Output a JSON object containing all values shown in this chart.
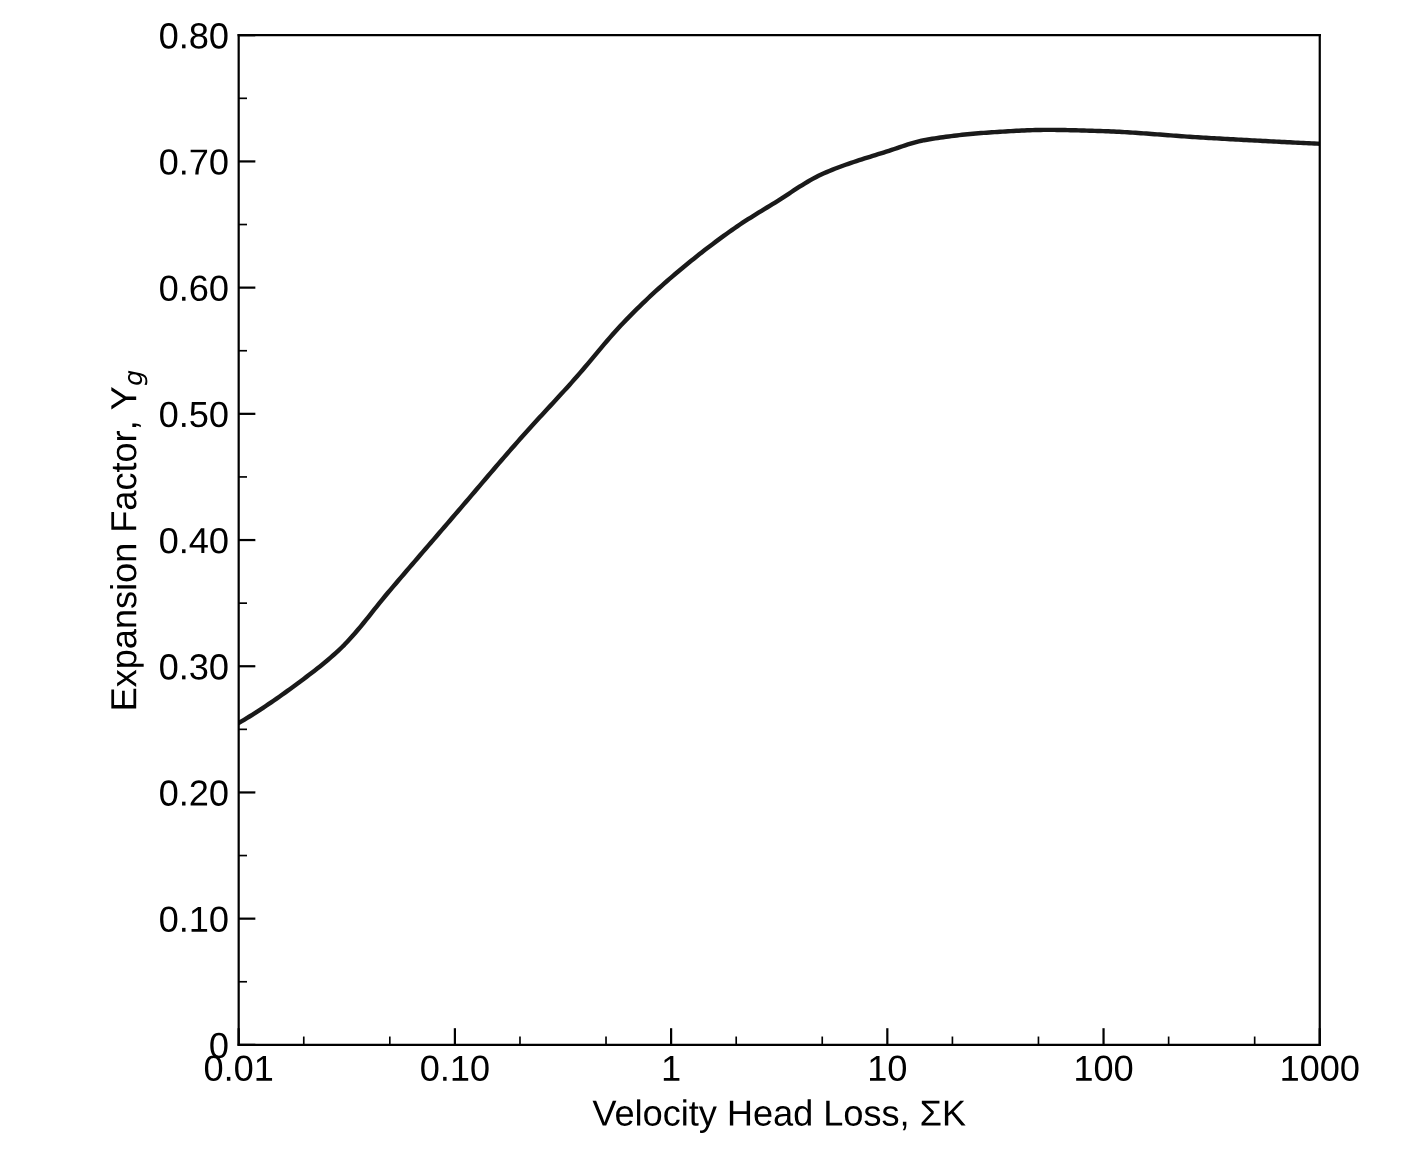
{
  "chart_data": {
    "type": "line",
    "xlabel": "Velocity Head Loss, ΣK",
    "ylabel": "Expansion Factor, Y$_{g}$",
    "log": "x",
    "xlim": [
      0.01,
      1000
    ],
    "xticks": [
      {
        "value": 0.01,
        "label": "0.01"
      },
      {
        "value": 0.1,
        "label": "0.10"
      },
      1,
      10,
      100,
      1000
    ],
    "ylim": [
      0,
      0.8
    ],
    "yticks": [
      {
        "value": 0,
        "label": "0"
      },
      {
        "value": 0.1,
        "label": "0.10"
      },
      {
        "value": 0.2,
        "label": "0.20"
      },
      {
        "value": 0.3,
        "label": "0.30"
      },
      {
        "value": 0.4,
        "label": "0.40"
      },
      {
        "value": 0.5,
        "label": "0.50"
      },
      {
        "value": 0.6,
        "label": "0.60"
      },
      {
        "value": 0.7,
        "label": "0.70"
      },
      {
        "value": 0.8,
        "label": "0.80"
      }
    ],
    "grid": false,
    "legend": false,
    "marker": "none",
    "line_style": "solid",
    "x": [
      0.01,
      0.02,
      0.03,
      0.05,
      0.1,
      0.2,
      0.36,
      0.6,
      1,
      2,
      3,
      5,
      10,
      15,
      30,
      55,
      100,
      280,
      1000
    ],
    "series": [
      {
        "color": "#1a1a1a",
        "values": [
          0.255,
          0.29,
          0.315,
          0.36,
          0.42,
          0.48,
          0.528,
          0.572,
          0.608,
          0.648,
          0.667,
          0.69,
          0.708,
          0.717,
          0.723,
          0.725,
          0.724,
          0.719,
          0.714
        ]
      }
    ]
  }
}
